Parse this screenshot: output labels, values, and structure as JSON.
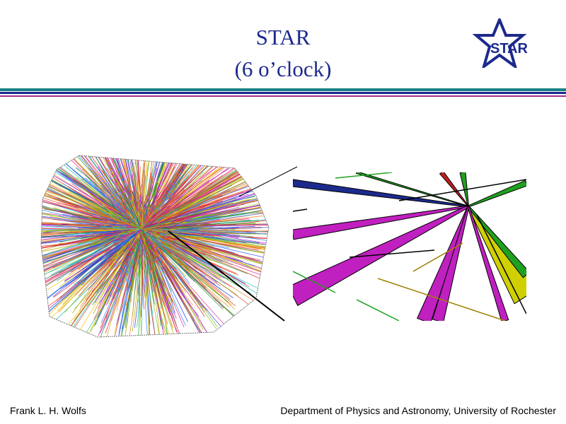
{
  "slide": {
    "title_line1": "STAR",
    "title_line2": "(6 o’clock)",
    "logo_text": "STAR",
    "footer_left": "Frank L. H. Wolfs",
    "footer_right": "Department of Physics and Astronomy, University of Rochester"
  },
  "colors": {
    "title": "#1c2a8c",
    "rule_teal": "#1b7f86",
    "rule_blue": "#1c2a8c",
    "rule_magenta": "#a0308c"
  },
  "figures": {
    "event_display": "star-tpc-event-tracks",
    "zoom_display": "vertex-zoom-tracks"
  }
}
